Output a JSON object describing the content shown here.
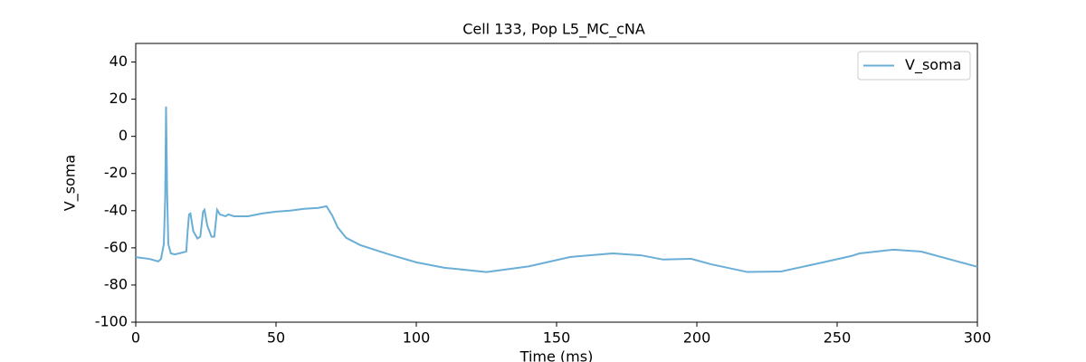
{
  "chart_data": {
    "type": "line",
    "title": "Cell 133, Pop L5_MC_cNA",
    "xlabel": "Time (ms)",
    "ylabel": "V_soma",
    "x": [
      0,
      5,
      8,
      9,
      10,
      10.5,
      10.8,
      11.2,
      11.6,
      12.5,
      14,
      18,
      18.5,
      19,
      19.5,
      20.5,
      22,
      23,
      24,
      24.5,
      25.5,
      27,
      28,
      29,
      30,
      32,
      33,
      35,
      40,
      45,
      50,
      55,
      60,
      65,
      68,
      70,
      72,
      75,
      80,
      90,
      100,
      110,
      125,
      140,
      155,
      170,
      180,
      188,
      198,
      205,
      218,
      230,
      245,
      255,
      258,
      270,
      280,
      300
    ],
    "series": [
      {
        "name": "V_soma",
        "color": "#6aaed6",
        "values": [
          -65,
          -66,
          -67.3,
          -66,
          -58,
          -33,
          16,
          -31,
          -58,
          -63,
          -63.5,
          -62,
          -51,
          -42,
          -41.5,
          -51,
          -55,
          -54,
          -40.5,
          -39.5,
          -48,
          -54,
          -54,
          -39.5,
          -42,
          -43,
          -42,
          -43,
          -43,
          -41.5,
          -40.5,
          -40,
          -39,
          -38.5,
          -37.6,
          -42.5,
          -49,
          -54.6,
          -58.5,
          -63.4,
          -67.8,
          -70.7,
          -73,
          -70,
          -64.9,
          -63,
          -64,
          -66.3,
          -65.9,
          -68.8,
          -73,
          -72.7,
          -67.8,
          -64.4,
          -63,
          -61,
          -62,
          -70.2
        ]
      }
    ],
    "xlim": [
      0,
      300
    ],
    "xticks": [
      0,
      50,
      100,
      150,
      200,
      250,
      300
    ],
    "ylim": [
      -100,
      50
    ],
    "yticks": [
      -100,
      -80,
      -60,
      -40,
      -20,
      0,
      20,
      40
    ],
    "legend": "upper right"
  }
}
